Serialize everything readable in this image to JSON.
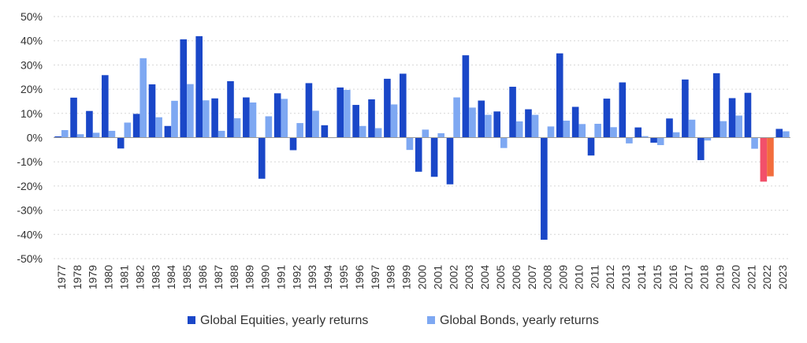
{
  "chart_data": {
    "type": "bar",
    "categories": [
      "1977",
      "1978",
      "1979",
      "1980",
      "1981",
      "1982",
      "1983",
      "1984",
      "1985",
      "1986",
      "1987",
      "1988",
      "1989",
      "1990",
      "1991",
      "1992",
      "1993",
      "1994",
      "1995",
      "1996",
      "1997",
      "1998",
      "1999",
      "2000",
      "2001",
      "2002",
      "2003",
      "2004",
      "2005",
      "2006",
      "2007",
      "2008",
      "2009",
      "2010",
      "2011",
      "2012",
      "2013",
      "2014",
      "2015",
      "2016",
      "2017",
      "2018",
      "2019",
      "2020",
      "2021",
      "2022",
      "2023"
    ],
    "series": [
      {
        "name": "Global Equities, yearly returns",
        "color": "#1a47c8",
        "values": [
          0.5,
          16.5,
          11,
          25.8,
          -4.5,
          9.8,
          22,
          4.8,
          40.6,
          41.9,
          16.2,
          23.3,
          16.6,
          -17,
          18.3,
          -5.2,
          22.5,
          5.1,
          20.7,
          13.5,
          15.8,
          24.3,
          26.4,
          -14.1,
          -16.2,
          -19.3,
          34,
          15.3,
          10.8,
          21,
          11.7,
          -42.2,
          34.8,
          12.7,
          -7.4,
          16.1,
          22.8,
          4.2,
          -2.1,
          7.9,
          24,
          -9.3,
          26.6,
          16.3,
          18.5,
          -18.2,
          3.6
        ],
        "highlight": {
          "2022": "#f2506a"
        }
      },
      {
        "name": "Global Bonds, yearly returns",
        "color": "#7ea8f2",
        "values": [
          3.1,
          1.4,
          2,
          2.8,
          6.2,
          32.8,
          8.4,
          15.2,
          22.1,
          15.4,
          2.8,
          8,
          14.5,
          8.8,
          16,
          6,
          11.1,
          0,
          19.7,
          4.8,
          3.9,
          13.7,
          -5.1,
          3.3,
          1.8,
          16.6,
          12.4,
          9.4,
          -4.3,
          6.7,
          9.4,
          4.6,
          7,
          5.6,
          5.7,
          4.3,
          -2.4,
          0.6,
          -3.1,
          2.2,
          7.4,
          -1.2,
          6.8,
          9.1,
          -4.6,
          -16,
          2.6
        ],
        "highlight": {
          "2022": "#f26d3d"
        }
      }
    ],
    "ylim": [
      -50,
      50
    ],
    "yticks": [
      -50,
      -40,
      -30,
      -20,
      -10,
      0,
      10,
      20,
      30,
      40,
      50
    ],
    "ytick_labels": [
      "-50%",
      "-40%",
      "-30%",
      "-20%",
      "-10%",
      "0%",
      "10%",
      "20%",
      "30%",
      "40%",
      "50%"
    ],
    "title": "",
    "xlabel": "",
    "ylabel": "",
    "grid": true,
    "legend_position": "bottom-center"
  }
}
